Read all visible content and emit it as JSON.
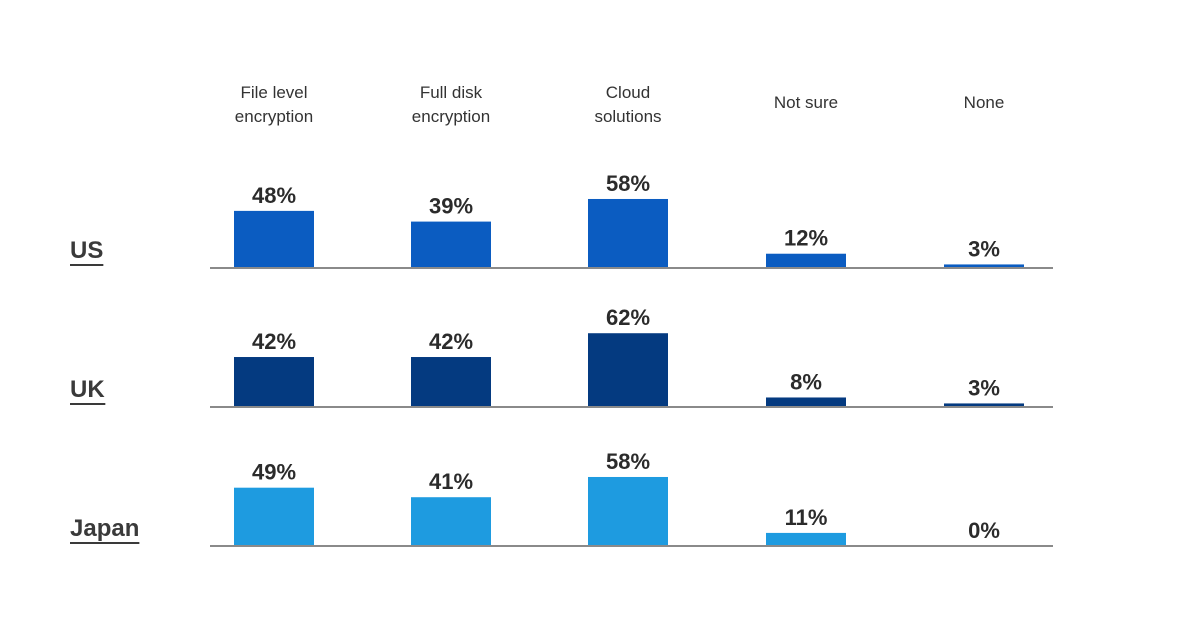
{
  "chart_data": {
    "type": "bar",
    "categories": [
      "File level\nencryption",
      "Full disk\nencryption",
      "Cloud\nsolutions",
      "Not sure",
      "None"
    ],
    "value_suffix": "%",
    "ylim": [
      0,
      65
    ],
    "series": [
      {
        "name": "US",
        "color": "#0b5cc1",
        "values": [
          48,
          39,
          58,
          12,
          3
        ]
      },
      {
        "name": "UK",
        "color": "#043a80",
        "values": [
          42,
          42,
          62,
          8,
          3
        ]
      },
      {
        "name": "Japan",
        "color": "#1e9be0",
        "values": [
          49,
          41,
          58,
          11,
          0
        ]
      }
    ],
    "baseline_color": "#8a8a8a",
    "grid": false
  }
}
